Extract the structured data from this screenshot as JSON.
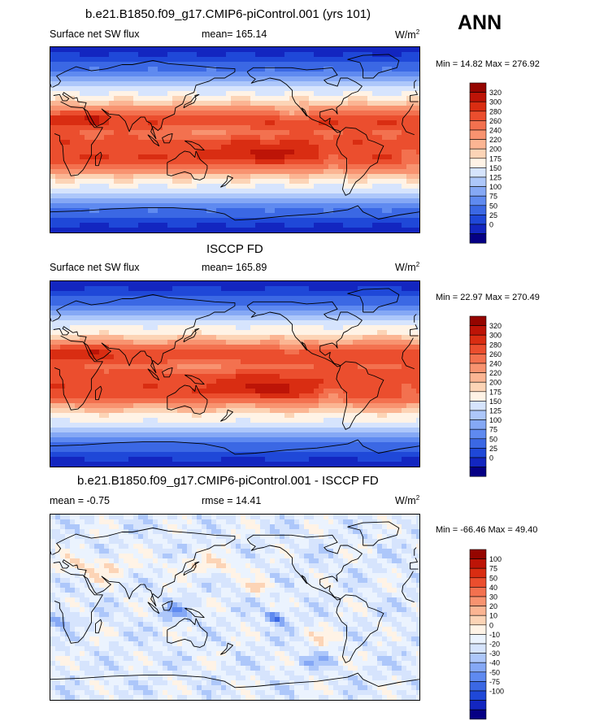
{
  "season": "ANN",
  "palette": {
    "abs": [
      "#050084",
      "#1326c0",
      "#1f48d8",
      "#3b68e4",
      "#5f8af0",
      "#85a8f5",
      "#adc7fa",
      "#d6e4fd",
      "#fff3e6",
      "#fcd4b6",
      "#fbb593",
      "#f89370",
      "#f3714f",
      "#eb4e2e",
      "#d92d12",
      "#bd1407",
      "#950500"
    ],
    "diff": [
      "#050084",
      "#1326c0",
      "#1f48d8",
      "#3b68e4",
      "#5f8af0",
      "#85a8f5",
      "#adc7fa",
      "#d6e4fd",
      "#ebf3fe",
      "#fff3e6",
      "#fcd4b6",
      "#fbb593",
      "#f89370",
      "#f3714f",
      "#eb4e2e",
      "#d92d12",
      "#bd1407",
      "#950500"
    ]
  },
  "panels": [
    {
      "id": "model",
      "title": "b.e21.B1850.f09_g17.CMIP6-piControl.001 (yrs 101)",
      "left_label": "Surface net SW flux",
      "center_label": "mean= 165.14",
      "units": "W/m",
      "units_exp": "2",
      "stats": "Min =  14.82 Max = 276.92",
      "colorbar_levels": [
        "320",
        "300",
        "280",
        "260",
        "240",
        "220",
        "200",
        "175",
        "150",
        "125",
        "100",
        "75",
        "50",
        "25",
        "0"
      ]
    },
    {
      "id": "obs",
      "title": "ISCCP FD",
      "left_label": "Surface net SW flux",
      "center_label": "mean= 165.89",
      "units": "W/m",
      "units_exp": "2",
      "stats": "Min =  22.97 Max = 270.49",
      "colorbar_levels": [
        "320",
        "300",
        "280",
        "260",
        "240",
        "220",
        "200",
        "175",
        "150",
        "125",
        "100",
        "75",
        "50",
        "25",
        "0"
      ]
    },
    {
      "id": "diff",
      "title": "b.e21.B1850.f09_g17.CMIP6-piControl.001 - ISCCP FD",
      "left_label": "mean =  -0.75",
      "center_label": "rmse =  14.41",
      "units": "W/m",
      "units_exp": "2",
      "stats": "Min = -66.46 Max =  49.40",
      "colorbar_levels": [
        "100",
        "75",
        "50",
        "40",
        "30",
        "20",
        "10",
        "0",
        "-10",
        "-20",
        "-30",
        "-40",
        "-50",
        "-75",
        "-100"
      ]
    }
  ],
  "chart_data": [
    {
      "type": "heatmap",
      "title": "b.e21.B1850.f09_g17.CMIP6-piControl.001 (yrs 101)",
      "variable": "Surface net SW flux",
      "units": "W/m2",
      "mean": 165.14,
      "min": 14.82,
      "max": 276.92,
      "levels": [
        0,
        25,
        50,
        75,
        100,
        125,
        150,
        175,
        200,
        220,
        240,
        260,
        280,
        300,
        320
      ]
    },
    {
      "type": "heatmap",
      "title": "ISCCP FD",
      "variable": "Surface net SW flux",
      "units": "W/m2",
      "mean": 165.89,
      "min": 22.97,
      "max": 270.49,
      "levels": [
        0,
        25,
        50,
        75,
        100,
        125,
        150,
        175,
        200,
        220,
        240,
        260,
        280,
        300,
        320
      ]
    },
    {
      "type": "heatmap",
      "title": "b.e21.B1850.f09_g17.CMIP6-piControl.001 - ISCCP FD",
      "units": "W/m2",
      "mean": -0.75,
      "rmse": 14.41,
      "min": -66.46,
      "max": 49.4,
      "levels": [
        -100,
        -75,
        -50,
        -40,
        -30,
        -20,
        -10,
        0,
        10,
        20,
        30,
        40,
        50,
        75,
        100
      ]
    }
  ]
}
